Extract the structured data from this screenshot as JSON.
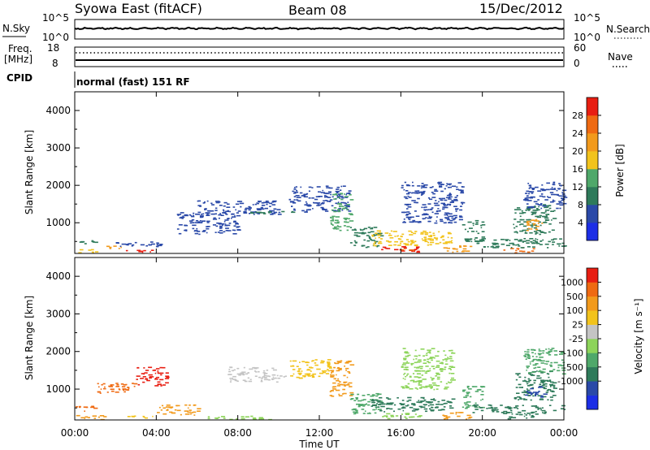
{
  "header": {
    "station": "Syowa East (fitACF)",
    "beam": "Beam 08",
    "date": "15/Dec/2012"
  },
  "noise_panel": {
    "left_label": "N.Sky",
    "left_ticks": [
      "10^5",
      "10^0"
    ],
    "right_ticks": [
      "10^5",
      "10^0"
    ],
    "right_label": "N.Search"
  },
  "freq_panel": {
    "left_label_line1": "Freq.",
    "left_label_line2": "[MHz]",
    "left_ticks": [
      "18",
      "8"
    ],
    "right_ticks": [
      "60",
      "0"
    ],
    "right_label": "Nave"
  },
  "cpid_panel": {
    "label": "CPID",
    "value": "normal (fast) 151 RF"
  },
  "colors": {
    "power": [
      "#1c2ee6",
      "#2a49a8",
      "#2e7a5a",
      "#4fa86a",
      "#f2c31c",
      "#f29a1c",
      "#ef6a12",
      "#e81e12"
    ],
    "velocity": [
      "#e81e12",
      "#ef6a12",
      "#f29a1c",
      "#f2c31c",
      "#c4c4c4",
      "#8dd45a",
      "#4fa86a",
      "#2e7a5a",
      "#2a49a8",
      "#1c2ee6"
    ]
  },
  "chart_data": [
    {
      "type": "heatmap",
      "title": "",
      "xlabel": "",
      "ylabel": "Slant Range [km]",
      "ylim": [
        180,
        4500
      ],
      "yticks": [
        "1000",
        "2000",
        "3000",
        "4000"
      ],
      "colorbar": {
        "label": "Power [dB]",
        "ticks": [
          "4",
          "8",
          "12",
          "16",
          "20",
          "24",
          "28"
        ]
      },
      "regions": [
        {
          "t": [
            0.0,
            1.0
          ],
          "r": [
            200,
            320
          ],
          "level": 4
        },
        {
          "t": [
            0.0,
            1.0
          ],
          "r": [
            420,
            560
          ],
          "level": 2
        },
        {
          "t": [
            1.3,
            2.3
          ],
          "r": [
            300,
            400
          ],
          "level": 5
        },
        {
          "t": [
            2.5,
            3.8
          ],
          "r": [
            200,
            300
          ],
          "level": 7
        },
        {
          "t": [
            2.0,
            4.5
          ],
          "r": [
            380,
            520
          ],
          "level": 1
        },
        {
          "t": [
            5.0,
            8.0
          ],
          "r": [
            700,
            1300
          ],
          "level": 1
        },
        {
          "t": [
            6.0,
            10.0
          ],
          "r": [
            1200,
            1600
          ],
          "level": 1
        },
        {
          "t": [
            8.5,
            11.0
          ],
          "r": [
            1250,
            1330
          ],
          "level": 2
        },
        {
          "t": [
            10.5,
            13.5
          ],
          "r": [
            1300,
            2000
          ],
          "level": 1
        },
        {
          "t": [
            12.5,
            13.5
          ],
          "r": [
            800,
            1800
          ],
          "level": 3
        },
        {
          "t": [
            13.5,
            15.0
          ],
          "r": [
            350,
            900
          ],
          "level": 2
        },
        {
          "t": [
            14.5,
            17.5
          ],
          "r": [
            400,
            800
          ],
          "level": 4
        },
        {
          "t": [
            15.0,
            17.0
          ],
          "r": [
            220,
            380
          ],
          "level": 7
        },
        {
          "t": [
            15.5,
            16.8
          ],
          "r": [
            250,
            330
          ],
          "level": 6
        },
        {
          "t": [
            16.0,
            19.0
          ],
          "r": [
            1000,
            2100
          ],
          "level": 1
        },
        {
          "t": [
            17.0,
            18.5
          ],
          "r": [
            450,
            800
          ],
          "level": 4
        },
        {
          "t": [
            18.0,
            19.5
          ],
          "r": [
            220,
            400
          ],
          "level": 5
        },
        {
          "t": [
            19.0,
            20.0
          ],
          "r": [
            500,
            1100
          ],
          "level": 2
        },
        {
          "t": [
            21.0,
            22.5
          ],
          "r": [
            200,
            350
          ],
          "level": 6
        },
        {
          "t": [
            21.5,
            23.5
          ],
          "r": [
            700,
            1500
          ],
          "level": 2
        },
        {
          "t": [
            22.0,
            23.0
          ],
          "r": [
            800,
            1100
          ],
          "level": 5
        },
        {
          "t": [
            22.0,
            24.0
          ],
          "r": [
            1400,
            2100
          ],
          "level": 1
        },
        {
          "t": [
            19.5,
            24.0
          ],
          "r": [
            350,
            600
          ],
          "level": 2
        }
      ]
    },
    {
      "type": "heatmap",
      "title": "",
      "xlabel": "Time UT",
      "ylabel": "Slant Range [km]",
      "ylim": [
        180,
        4500
      ],
      "yticks": [
        "1000",
        "2000",
        "3000",
        "4000"
      ],
      "xticks": [
        "00:00",
        "04:00",
        "08:00",
        "12:00",
        "16:00",
        "20:00",
        "00:00"
      ],
      "colorbar": {
        "label": "Velocity [m s⁻¹]",
        "ticks": [
          "1000",
          "500",
          "100",
          "25",
          "-25",
          "-100",
          "-500",
          "-1000"
        ]
      },
      "regions": [
        {
          "t": [
            0.0,
            1.0
          ],
          "r": [
            420,
            560
          ],
          "level": 1
        },
        {
          "t": [
            0.0,
            1.5
          ],
          "r": [
            200,
            320
          ],
          "level": 2
        },
        {
          "t": [
            1.0,
            3.0
          ],
          "r": [
            900,
            1200
          ],
          "level": 1
        },
        {
          "t": [
            2.5,
            3.8
          ],
          "r": [
            200,
            300
          ],
          "level": 3
        },
        {
          "t": [
            3.0,
            4.5
          ],
          "r": [
            1100,
            1600
          ],
          "level": 0
        },
        {
          "t": [
            4.0,
            6.0
          ],
          "r": [
            300,
            600
          ],
          "level": 2
        },
        {
          "t": [
            6.5,
            9.5
          ],
          "r": [
            200,
            300
          ],
          "level": 5
        },
        {
          "t": [
            7.5,
            10.0
          ],
          "r": [
            1200,
            1600
          ],
          "level": 4
        },
        {
          "t": [
            9.0,
            10.5
          ],
          "r": [
            1300,
            1400
          ],
          "level": 4
        },
        {
          "t": [
            10.5,
            12.5
          ],
          "r": [
            1300,
            1800
          ],
          "level": 3
        },
        {
          "t": [
            12.5,
            13.5
          ],
          "r": [
            800,
            1800
          ],
          "level": 2
        },
        {
          "t": [
            13.5,
            15.0
          ],
          "r": [
            350,
            900
          ],
          "level": 6
        },
        {
          "t": [
            14.5,
            17.5
          ],
          "r": [
            400,
            800
          ],
          "level": 7
        },
        {
          "t": [
            15.0,
            17.0
          ],
          "r": [
            220,
            380
          ],
          "level": 5
        },
        {
          "t": [
            16.0,
            18.5
          ],
          "r": [
            1000,
            2100
          ],
          "level": 5
        },
        {
          "t": [
            17.0,
            18.5
          ],
          "r": [
            450,
            800
          ],
          "level": 7
        },
        {
          "t": [
            18.0,
            19.5
          ],
          "r": [
            220,
            400
          ],
          "level": 2
        },
        {
          "t": [
            19.0,
            20.0
          ],
          "r": [
            500,
            1100
          ],
          "level": 6
        },
        {
          "t": [
            21.0,
            22.5
          ],
          "r": [
            200,
            350
          ],
          "level": 7
        },
        {
          "t": [
            21.5,
            23.5
          ],
          "r": [
            700,
            1500
          ],
          "level": 7
        },
        {
          "t": [
            22.0,
            23.0
          ],
          "r": [
            800,
            1100
          ],
          "level": 8
        },
        {
          "t": [
            22.0,
            24.0
          ],
          "r": [
            1400,
            2100
          ],
          "level": 6
        },
        {
          "t": [
            19.5,
            24.0
          ],
          "r": [
            350,
            600
          ],
          "level": 7
        }
      ]
    }
  ]
}
